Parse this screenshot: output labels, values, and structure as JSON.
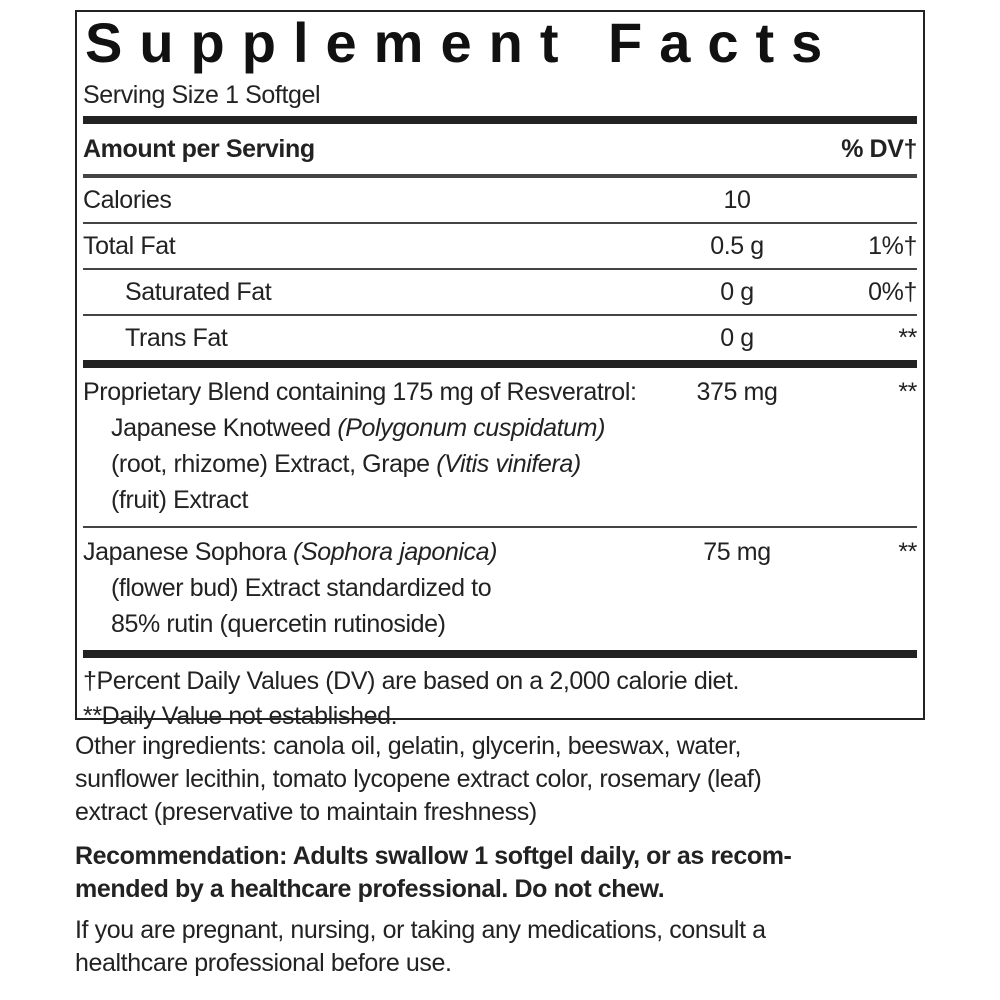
{
  "title": "Supplement Facts",
  "serving_size": "Serving Size 1 Softgel",
  "header": {
    "amount": "Amount per Serving",
    "dv": "% DV†"
  },
  "rows": [
    {
      "name": "Calories",
      "amount": "10"
    },
    {
      "name": "Total Fat",
      "amount": "0.5 g",
      "dv": "1%†"
    },
    {
      "name": "Saturated Fat",
      "amount": "0 g",
      "dv": "0%†",
      "indent": true
    },
    {
      "name": "Trans Fat",
      "amount": "0 g",
      "dv": "**",
      "indent": true
    }
  ],
  "blends": [
    {
      "lines": [
        [
          {
            "text": "Proprietary Blend containing 175 mg of Resveratrol:"
          }
        ],
        [
          {
            "text": "Japanese Knotweed "
          },
          {
            "text": "(Polygonum cuspidatum)",
            "italic": true
          }
        ],
        [
          {
            "text": "(root, rhizome) Extract, Grape "
          },
          {
            "text": "(Vitis vinifera)",
            "italic": true
          }
        ],
        [
          {
            "text": "(fruit) Extract"
          }
        ]
      ],
      "amount": "375 mg",
      "dv": "**"
    },
    {
      "lines": [
        [
          {
            "text": "Japanese Sophora "
          },
          {
            "text": "(Sophora japonica)",
            "italic": true
          }
        ],
        [
          {
            "text": "(flower bud) Extract standardized to"
          }
        ],
        [
          {
            "text": "85% rutin (quercetin rutinoside)"
          }
        ]
      ],
      "amount": "75 mg",
      "dv": "**"
    }
  ],
  "footnotes": [
    "†Percent Daily Values (DV) are based on a 2,000 calorie diet.",
    "**Daily Value not established."
  ],
  "other_ingredients": [
    "Other ingredients: canola oil, gelatin, glycerin, beeswax, water,",
    "sunflower lecithin, tomato lycopene extract color, rosemary (leaf)",
    "extract (preservative to maintain freshness)"
  ],
  "recommendation": {
    "label": "Recommendation:",
    "lines": [
      " Adults swallow 1 softgel daily, or as recom-",
      "mended by a healthcare professional. Do not chew."
    ]
  },
  "warning": [
    "If you are pregnant, nursing, or taking any medications, consult a",
    "healthcare professional before use."
  ]
}
